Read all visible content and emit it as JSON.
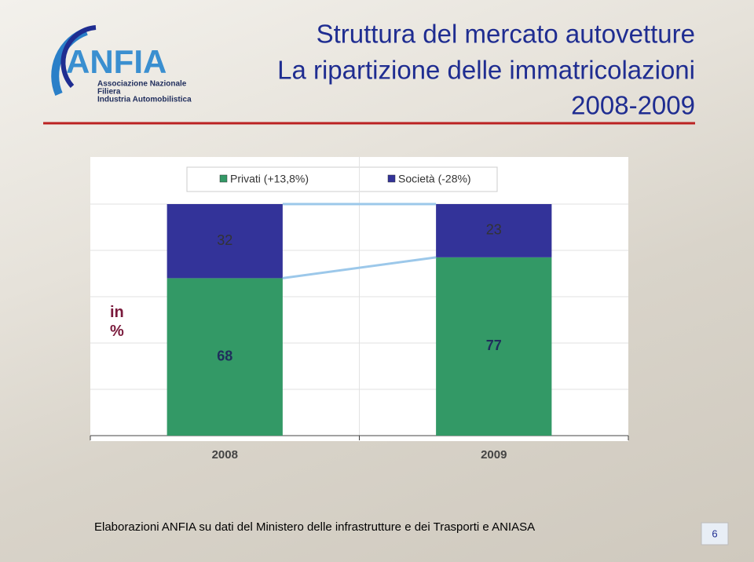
{
  "slide": {
    "title": [
      "Struttura del mercato autovetture",
      "La ripartizione delle immatricolazioni",
      "2008-2009"
    ],
    "source": "Elaborazioni ANFIA  su dati del Ministero delle infrastrutture e dei Trasporti e ANIASA",
    "page_number": "6"
  },
  "logo": {
    "name": "ANFIA",
    "lines": [
      "Associazione Nazionale",
      "Filiera",
      "Industria Automobilistica"
    ]
  },
  "chart_data": {
    "type": "bar",
    "stacked": true,
    "y_label": "in %",
    "categories": [
      "2008",
      "2009"
    ],
    "series": [
      {
        "name": "Privati (+13,8%)",
        "color": "#339966",
        "values": [
          68,
          77
        ]
      },
      {
        "name": "Società (-28%)",
        "color": "#333399",
        "values": [
          32,
          23
        ]
      }
    ],
    "ylim": [
      0,
      100
    ],
    "yticks": [
      0,
      20,
      40,
      60,
      80,
      100
    ],
    "grid": true,
    "legend": "top"
  }
}
